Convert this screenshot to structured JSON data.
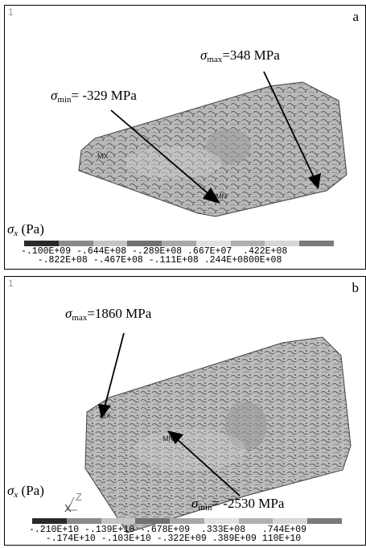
{
  "panel_a": {
    "frame_number": "1",
    "letter": "a",
    "max_label": {
      "sym": "σ",
      "sub": "max",
      "text": "=348 MPa"
    },
    "min_label": {
      "sym": "σ",
      "sub": "min",
      "text": "= -329 MPa"
    },
    "legend_title": {
      "sym": "σ",
      "sub": "x",
      "unit": " (Pa)"
    },
    "ticks_top": "-.100E+09 -.644E+08 -.289E+08 .667E+07  .422E+08",
    "ticks_bottom": "   -.822E+08 -.467E+08 -.111E+08 .244E+0800E+08",
    "colors": [
      "#2a2a2a",
      "#8a8a8a",
      "#c4c4c4",
      "#707070",
      "#a8a8a8",
      "#e0e0e0",
      "#b0b0b0",
      "#d6d6d6",
      "#7a7a7a"
    ]
  },
  "panel_b": {
    "frame_number": "1",
    "letter": "b",
    "max_label": {
      "sym": "σ",
      "sub": "max",
      "text": "=1860 MPa"
    },
    "min_label": {
      "sym": "σ",
      "sub": "min",
      "text": "= -2530 MPa"
    },
    "legend_title": {
      "sym": "σ",
      "sub": "x",
      "unit": " (Pa)"
    },
    "axis_label": "Z",
    "axis_label_2": "X",
    "ticks_top": "-.210E+10 -.139E+10 -.678E+09  .333E+08   .744E+09",
    "ticks_bottom": "   -.174E+10 -.103E+10 -.322E+09 .389E+09 110E+10",
    "colors": [
      "#2a2a2a",
      "#8a8a8a",
      "#c4c4c4",
      "#707070",
      "#a8a8a8",
      "#e0e0e0",
      "#b0b0b0",
      "#d6d6d6",
      "#7a7a7a"
    ]
  }
}
